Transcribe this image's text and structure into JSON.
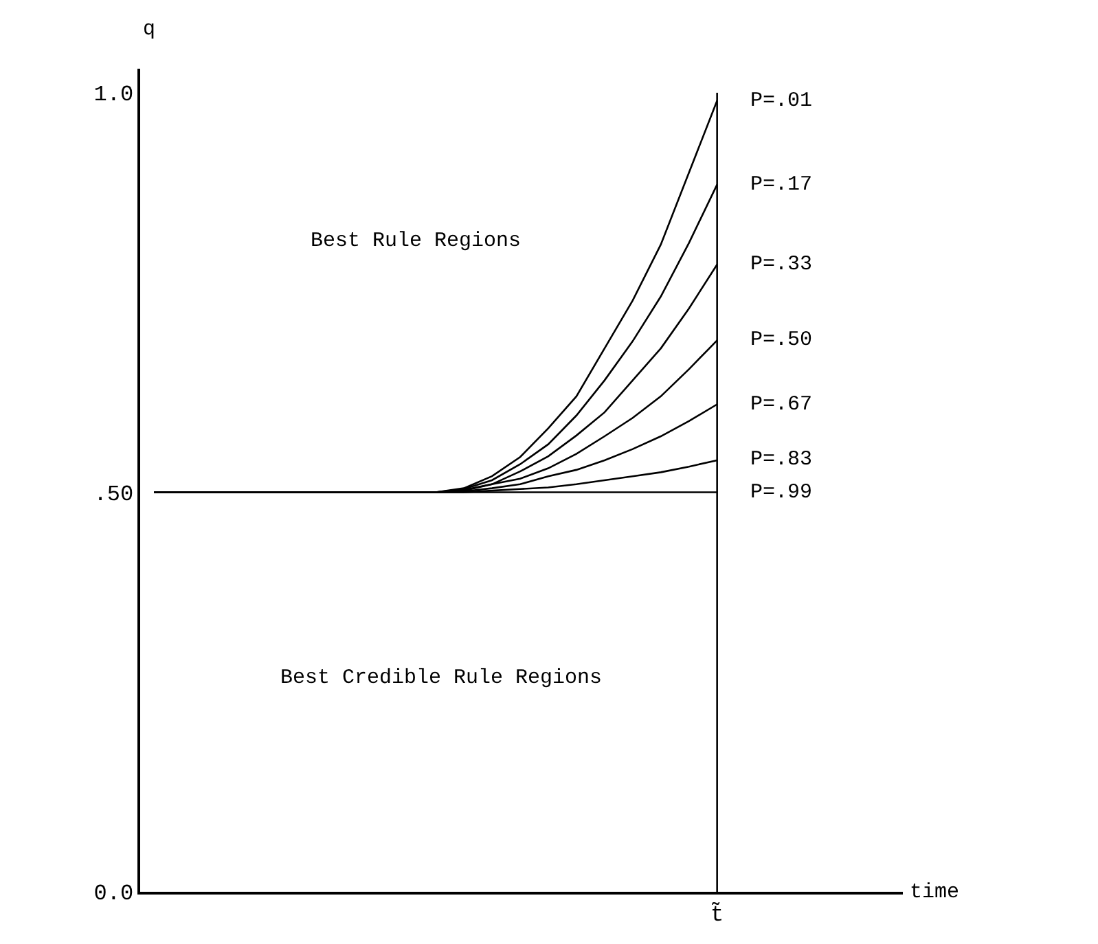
{
  "chart_data": {
    "type": "line",
    "ylabel": "q",
    "categories": [
      null,
      null,
      null,
      null,
      null,
      null,
      null,
      null,
      null,
      null,
      null,
      null,
      null,
      null,
      null,
      null,
      null,
      null,
      null,
      null,
      "t̃"
    ],
    "series": [
      {
        "name": "P=.01",
        "color": "#000000",
        "values": [
          0.5,
          0.5,
          0.5,
          0.5,
          0.5,
          0.5,
          0.5,
          0.5,
          0.5,
          0.5,
          0.5,
          0.505,
          0.52,
          0.544,
          0.58,
          0.62,
          0.68,
          0.74,
          0.81,
          0.9,
          0.99
        ]
      },
      {
        "name": "P=.17",
        "color": "#000000",
        "values": [
          0.5,
          0.5,
          0.5,
          0.5,
          0.5,
          0.5,
          0.5,
          0.5,
          0.5,
          0.5,
          0.5,
          0.504,
          0.515,
          0.535,
          0.56,
          0.596,
          0.64,
          0.689,
          0.745,
          0.812,
          0.885
        ]
      },
      {
        "name": "P=.33",
        "color": "#000000",
        "values": [
          0.5,
          0.5,
          0.5,
          0.5,
          0.5,
          0.5,
          0.5,
          0.5,
          0.5,
          0.5,
          0.5,
          0.503,
          0.51,
          0.526,
          0.545,
          0.571,
          0.6,
          0.64,
          0.68,
          0.73,
          0.785
        ]
      },
      {
        "name": "P=.50",
        "color": "#000000",
        "values": [
          0.5,
          0.5,
          0.5,
          0.5,
          0.5,
          0.5,
          0.5,
          0.5,
          0.5,
          0.5,
          0.5,
          0.502,
          0.51,
          0.517,
          0.53,
          0.548,
          0.57,
          0.593,
          0.62,
          0.654,
          0.69
        ]
      },
      {
        "name": "P=.67",
        "color": "#000000",
        "values": [
          0.5,
          0.5,
          0.5,
          0.5,
          0.5,
          0.5,
          0.5,
          0.5,
          0.5,
          0.5,
          0.5,
          0.501,
          0.505,
          0.51,
          0.52,
          0.528,
          0.54,
          0.554,
          0.57,
          0.589,
          0.61
        ]
      },
      {
        "name": "P=.83",
        "color": "#000000",
        "values": [
          0.5,
          0.5,
          0.5,
          0.5,
          0.5,
          0.5,
          0.5,
          0.5,
          0.5,
          0.5,
          0.5,
          0.5,
          0.502,
          0.504,
          0.506,
          0.51,
          0.515,
          0.52,
          0.525,
          0.532,
          0.54
        ]
      },
      {
        "name": "P=.99",
        "color": "#000000",
        "values": [
          0.5,
          0.5,
          0.5,
          0.5,
          0.5,
          0.5,
          0.5,
          0.5,
          0.5,
          0.5,
          0.5,
          0.5,
          0.5,
          0.5,
          0.5,
          0.5,
          0.5,
          0.5,
          0.5,
          0.5,
          0.5
        ]
      }
    ],
    "ylim": [
      0,
      1.03
    ],
    "yticks": [
      {
        "value": 0,
        "label": "0.0"
      },
      {
        "value": 0.5,
        "label": ".50"
      },
      {
        "value": 1,
        "label": "1.0"
      }
    ],
    "ref_lines": [
      {
        "axis": "x",
        "value": "t̃",
        "label": null,
        "color": "#000000",
        "line_style": "solid"
      }
    ],
    "annotations": [
      "Best Rule Regions",
      "Best Credible Rule Regions",
      "time"
    ],
    "legend": false,
    "marker": "none",
    "line_style": "solid"
  }
}
